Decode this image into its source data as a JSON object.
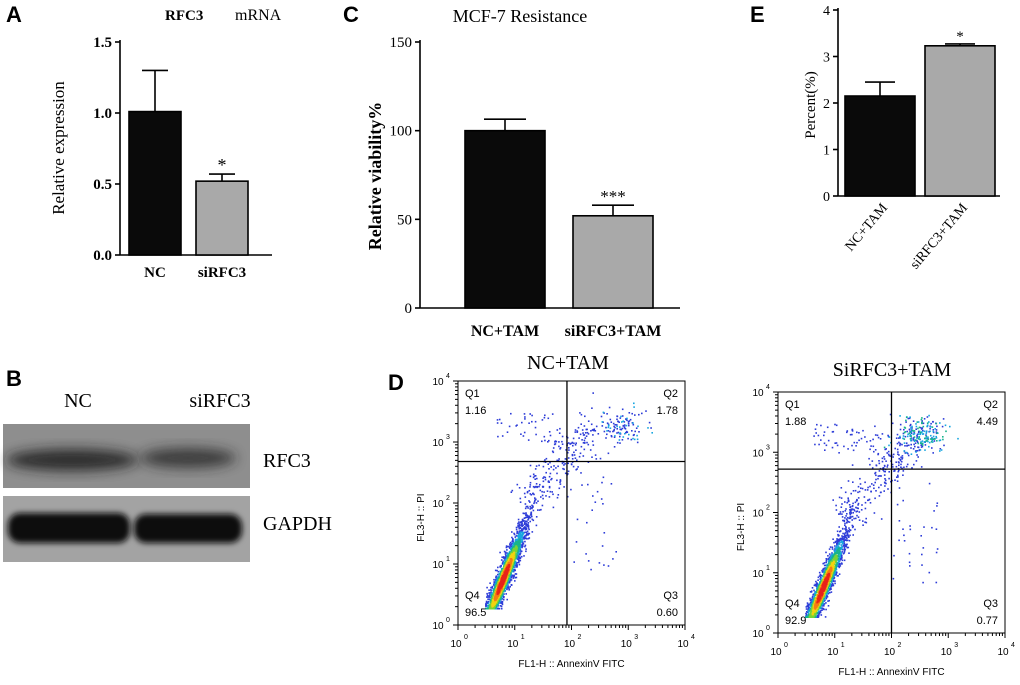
{
  "colors": {
    "black": "#0a0a0a",
    "gray": "#a9a9a9",
    "blot_bg": "#8e8e8e",
    "blot_bg2": "#a3a3a3"
  },
  "chart_data": [
    {
      "id": "A",
      "type": "bar",
      "letter": "A",
      "title_bold": "RFC3",
      "title_rest": "mRNA",
      "ylabel": "Relative expression",
      "ylim": [
        0,
        1.5
      ],
      "yticks": [
        {
          "v": 0,
          "label": "0.0"
        },
        {
          "v": 0.5,
          "label": "0.5"
        },
        {
          "v": 1.0,
          "label": "1.0"
        },
        {
          "v": 1.5,
          "label": "1.5"
        }
      ],
      "categories": [
        "NC",
        "siRFC3"
      ],
      "values": [
        1.01,
        0.52
      ],
      "errors": [
        0.29,
        0.05
      ],
      "significance": [
        "",
        "*"
      ],
      "bar_colors": [
        "black",
        "gray"
      ]
    },
    {
      "id": "C",
      "type": "bar",
      "letter": "C",
      "title": "MCF-7 Resistance",
      "ylabel": "Relative viability%",
      "ylim": [
        0,
        150
      ],
      "yticks": [
        {
          "v": 0,
          "label": "0"
        },
        {
          "v": 50,
          "label": "50"
        },
        {
          "v": 100,
          "label": "100"
        },
        {
          "v": 150,
          "label": "150"
        }
      ],
      "categories": [
        "NC+TAM",
        "siRFC3+TAM"
      ],
      "values": [
        100,
        52
      ],
      "errors": [
        6.5,
        6
      ],
      "significance": [
        "",
        "***"
      ],
      "bar_colors": [
        "black",
        "gray"
      ]
    },
    {
      "id": "E",
      "type": "bar",
      "letter": "E",
      "ylabel": "Percent(%)",
      "ylim": [
        0,
        4
      ],
      "yticks": [
        {
          "v": 0,
          "label": "0"
        },
        {
          "v": 1,
          "label": "1"
        },
        {
          "v": 2,
          "label": "2"
        },
        {
          "v": 3,
          "label": "3"
        },
        {
          "v": 4,
          "label": "4"
        }
      ],
      "categories": [
        "NC+TAM",
        "siRFC3+TAM"
      ],
      "values": [
        2.15,
        3.23
      ],
      "errors": [
        0.3,
        0.04
      ],
      "significance": [
        "",
        "*"
      ],
      "bar_colors": [
        "black",
        "gray"
      ]
    },
    {
      "id": "D1",
      "type": "scatter",
      "letter": "D",
      "title": "NC+TAM",
      "xlabel": "FL1-H :: AnnexinV FITC",
      "ylabel": "FL3-H :: PI",
      "axis_scale": "log",
      "tick_labels": [
        "10",
        "10",
        "10",
        "10",
        "10"
      ],
      "tick_exponents": [
        "0",
        "1",
        "2",
        "3",
        "4"
      ],
      "quadrants": [
        {
          "name": "Q1",
          "value": "1.16"
        },
        {
          "name": "Q2",
          "value": "1.78"
        },
        {
          "name": "Q3",
          "value": "0.60"
        },
        {
          "name": "Q4",
          "value": "96.5"
        }
      ]
    },
    {
      "id": "D2",
      "type": "scatter",
      "title": "SiRFC3+TAM",
      "xlabel": "FL1-H :: AnnexinV FITC",
      "ylabel": "FL3-H :: PI",
      "axis_scale": "log",
      "tick_labels": [
        "10",
        "10",
        "10",
        "10",
        "10"
      ],
      "tick_exponents": [
        "0",
        "1",
        "2",
        "3",
        "4"
      ],
      "quadrants": [
        {
          "name": "Q1",
          "value": "1.88"
        },
        {
          "name": "Q2",
          "value": "4.49"
        },
        {
          "name": "Q3",
          "value": "0.77"
        },
        {
          "name": "Q4",
          "value": "92.9"
        }
      ]
    }
  ],
  "western": {
    "letter": "B",
    "lanes": [
      "NC",
      "siRFC3"
    ],
    "rows": [
      "RFC3",
      "GAPDH"
    ]
  }
}
